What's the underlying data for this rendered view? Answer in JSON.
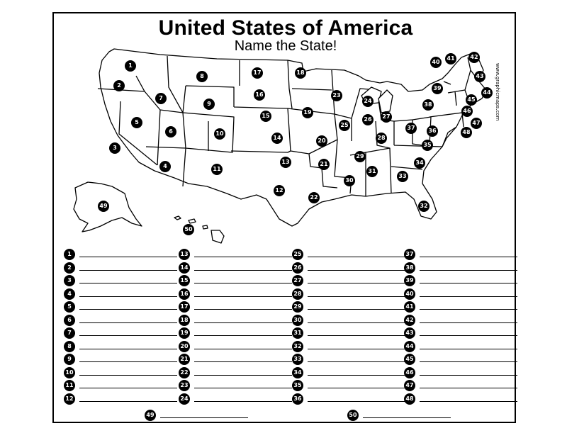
{
  "title": "United States of America",
  "subtitle": "Name the State!",
  "watermark": "www.graphicmaps.com",
  "colors": {
    "ink": "#000000",
    "paper": "#ffffff"
  },
  "map_markers": [
    "1",
    "2",
    "3",
    "4",
    "5",
    "6",
    "7",
    "8",
    "9",
    "10",
    "11",
    "12",
    "13",
    "14",
    "15",
    "16",
    "17",
    "18",
    "19",
    "20",
    "21",
    "22",
    "23",
    "24",
    "25",
    "26",
    "27",
    "28",
    "29",
    "30",
    "31",
    "32",
    "33",
    "34",
    "35",
    "36",
    "37",
    "38",
    "39",
    "40",
    "41",
    "42",
    "43",
    "44",
    "45",
    "46",
    "47",
    "48",
    "49",
    "50"
  ],
  "answer_columns": [
    [
      "1",
      "2",
      "3",
      "4",
      "5",
      "6",
      "7",
      "8",
      "9",
      "10",
      "11",
      "12"
    ],
    [
      "13",
      "14",
      "15",
      "16",
      "17",
      "18",
      "19",
      "20",
      "21",
      "22",
      "23",
      "24"
    ],
    [
      "25",
      "26",
      "27",
      "28",
      "29",
      "30",
      "31",
      "32",
      "33",
      "34",
      "35",
      "36"
    ],
    [
      "37",
      "38",
      "39",
      "40",
      "41",
      "42",
      "43",
      "44",
      "45",
      "46",
      "47",
      "48"
    ]
  ],
  "answer_extra": [
    "49",
    "50"
  ]
}
